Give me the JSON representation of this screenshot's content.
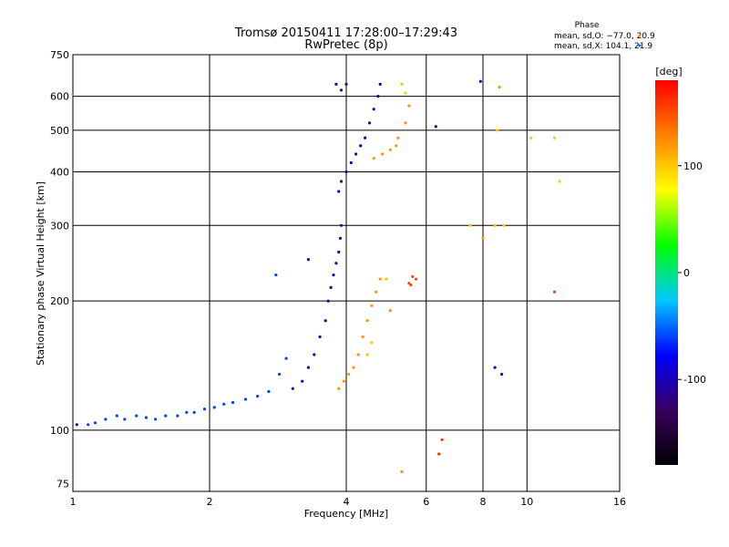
{
  "chart_data": {
    "type": "scatter",
    "title": "Tromsø 20150411 17:28:00–17:29:43",
    "subtitle": "RwPretec (8p)",
    "xlabel": "Frequency [MHz]",
    "ylabel": "Stationary phase Virtual Height [km]",
    "x_scale": "log",
    "y_scale": "log",
    "xlim": [
      1,
      16
    ],
    "ylim": [
      72,
      750
    ],
    "x_ticks": [
      1,
      2,
      4,
      6,
      8,
      10,
      16
    ],
    "y_ticks": [
      75,
      100,
      200,
      300,
      400,
      500,
      600,
      750
    ],
    "x_gridlines": [
      2,
      4,
      6,
      8,
      10
    ],
    "y_gridlines": [
      100,
      200,
      300,
      400,
      500,
      600
    ],
    "grid": true,
    "legend": {
      "title": "Phase",
      "entries": [
        "mean, sd,O: −77.0, 20.9",
        "mean, sd,X: 104.1, 21.9"
      ],
      "colors": [
        "#ff8c00",
        "#0066ff"
      ],
      "position": "top-right"
    },
    "colorbar": {
      "label": "[deg]",
      "ticks": [
        100,
        0,
        -100
      ],
      "range": [
        -180,
        180
      ],
      "colors": [
        "#000000",
        "#3a0060",
        "#0000ff",
        "#00c8ff",
        "#00ff00",
        "#ffff00",
        "#ff8000",
        "#ff0000"
      ]
    },
    "series": [
      {
        "name": "O",
        "points": [
          [
            1.02,
            103,
            -100
          ],
          [
            1.08,
            103,
            -60
          ],
          [
            1.12,
            104,
            -60
          ],
          [
            1.18,
            106,
            -60
          ],
          [
            1.25,
            108,
            -60
          ],
          [
            1.3,
            106,
            -60
          ],
          [
            1.38,
            108,
            -60
          ],
          [
            1.45,
            107,
            -60
          ],
          [
            1.52,
            106,
            -60
          ],
          [
            1.6,
            108,
            -60
          ],
          [
            1.7,
            108,
            -60
          ],
          [
            1.78,
            110,
            -60
          ],
          [
            1.85,
            110,
            -60
          ],
          [
            1.95,
            112,
            -60
          ],
          [
            2.05,
            113,
            -60
          ],
          [
            2.15,
            115,
            -60
          ],
          [
            2.25,
            116,
            -60
          ],
          [
            2.4,
            118,
            -60
          ],
          [
            2.55,
            120,
            -60
          ],
          [
            2.7,
            123,
            -60
          ],
          [
            2.85,
            135,
            -60
          ],
          [
            2.95,
            147,
            -60
          ],
          [
            3.05,
            125,
            -100
          ],
          [
            3.2,
            130,
            -100
          ],
          [
            3.3,
            140,
            -100
          ],
          [
            3.4,
            150,
            -100
          ],
          [
            3.5,
            165,
            -100
          ],
          [
            3.6,
            180,
            -100
          ],
          [
            3.65,
            200,
            -100
          ],
          [
            3.7,
            215,
            -100
          ],
          [
            3.75,
            230,
            -100
          ],
          [
            3.8,
            245,
            -100
          ],
          [
            3.85,
            260,
            -100
          ],
          [
            3.88,
            280,
            -100
          ],
          [
            3.9,
            300,
            -100
          ],
          [
            3.85,
            360,
            -100
          ],
          [
            3.9,
            380,
            -100
          ],
          [
            4.0,
            400,
            -100
          ],
          [
            4.1,
            420,
            -100
          ],
          [
            4.2,
            440,
            -100
          ],
          [
            4.3,
            460,
            -100
          ],
          [
            4.4,
            480,
            -100
          ],
          [
            4.5,
            520,
            -100
          ],
          [
            4.6,
            560,
            -100
          ],
          [
            4.7,
            600,
            -100
          ],
          [
            4.75,
            640,
            -100
          ],
          [
            3.8,
            640,
            -100
          ],
          [
            3.9,
            620,
            -100
          ],
          [
            4.0,
            640,
            -100
          ],
          [
            3.3,
            250,
            -100
          ],
          [
            2.8,
            230,
            -60
          ],
          [
            6.3,
            510,
            -110
          ],
          [
            7.9,
            650,
            -100
          ],
          [
            8.5,
            140,
            -100
          ],
          [
            8.8,
            135,
            -80
          ]
        ]
      },
      {
        "name": "X",
        "points": [
          [
            3.85,
            125,
            120
          ],
          [
            3.95,
            130,
            120
          ],
          [
            4.05,
            135,
            120
          ],
          [
            4.15,
            140,
            120
          ],
          [
            4.25,
            150,
            120
          ],
          [
            4.35,
            165,
            120
          ],
          [
            4.45,
            180,
            120
          ],
          [
            4.55,
            195,
            120
          ],
          [
            4.65,
            210,
            120
          ],
          [
            4.75,
            225,
            120
          ],
          [
            4.55,
            160,
            100
          ],
          [
            4.45,
            150,
            100
          ],
          [
            4.9,
            225,
            100
          ],
          [
            5.0,
            190,
            120
          ],
          [
            4.6,
            430,
            120
          ],
          [
            4.8,
            440,
            120
          ],
          [
            5.0,
            450,
            120
          ],
          [
            5.2,
            480,
            120
          ],
          [
            5.4,
            520,
            120
          ],
          [
            5.5,
            570,
            120
          ],
          [
            5.4,
            610,
            100
          ],
          [
            5.3,
            640,
            100
          ],
          [
            5.15,
            460,
            120
          ],
          [
            5.5,
            220,
            150
          ],
          [
            5.6,
            228,
            150
          ],
          [
            5.7,
            225,
            150
          ],
          [
            5.55,
            218,
            150
          ],
          [
            8.7,
            630,
            120
          ],
          [
            8.6,
            500,
            100
          ],
          [
            8.9,
            300,
            100
          ],
          [
            8.5,
            300,
            100
          ],
          [
            8.0,
            280,
            120
          ],
          [
            7.5,
            300,
            100
          ],
          [
            6.4,
            88,
            160
          ],
          [
            6.5,
            95,
            160
          ],
          [
            5.3,
            80,
            120
          ],
          [
            10.2,
            480,
            100
          ],
          [
            11.5,
            480,
            100
          ],
          [
            11.8,
            380,
            100
          ],
          [
            11.5,
            210,
            160
          ]
        ]
      }
    ]
  }
}
